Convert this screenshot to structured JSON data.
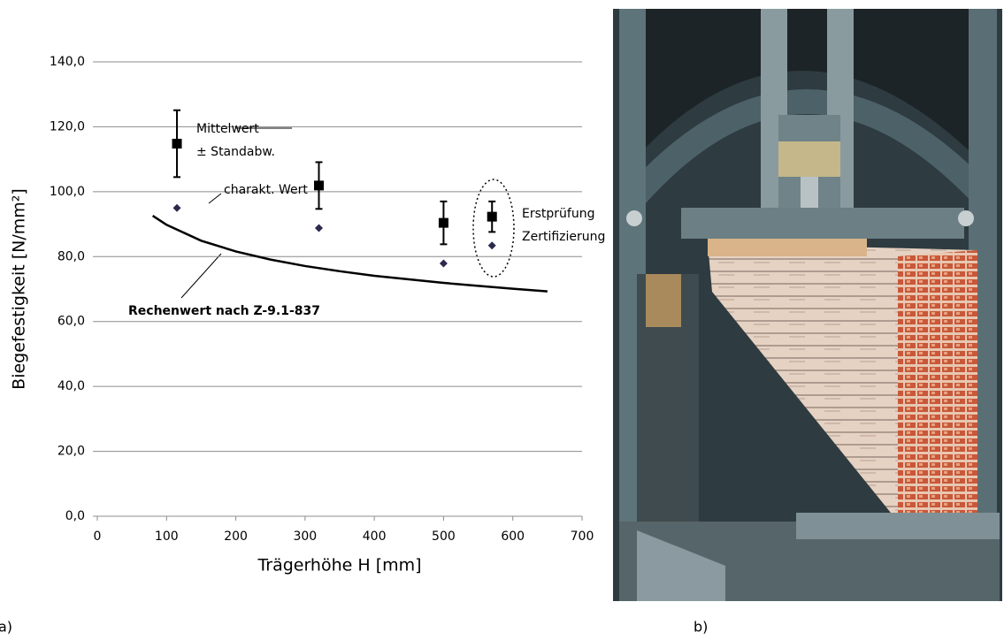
{
  "chart_data": {
    "type": "scatter",
    "xlabel": "Trägerhöhe H [mm]",
    "ylabel": "Biegefestigkeit [N/mm²]",
    "xlim": [
      0,
      700
    ],
    "xticks": [
      0,
      100,
      200,
      300,
      400,
      500,
      600,
      700
    ],
    "ylim": [
      0,
      140
    ],
    "yticks": [
      {
        "value": 0,
        "label": "0,0"
      },
      {
        "value": 20,
        "label": "20,0"
      },
      {
        "value": 40,
        "label": "40,0"
      },
      {
        "value": 60,
        "label": "60,0"
      },
      {
        "value": 80,
        "label": "80,0"
      },
      {
        "value": 100,
        "label": "100,0"
      },
      {
        "value": 120,
        "label": "120,0"
      },
      {
        "value": 140,
        "label": "140,0"
      }
    ],
    "grid": true,
    "series": [
      {
        "color": "#000000",
        "x": [
          115,
          320,
          500,
          570
        ],
        "values": [
          114.8,
          101.9,
          90.4,
          92.3
        ],
        "errors": [
          10.3,
          7.2,
          6.6,
          4.7
        ]
      },
      {
        "color": "#2b2a4c",
        "x": [
          115,
          320,
          500,
          570
        ],
        "values": [
          95.0,
          88.8,
          77.9,
          83.4
        ]
      }
    ],
    "curve": {
      "color": "#000000",
      "x": [
        80,
        100,
        150,
        200,
        250,
        300,
        350,
        400,
        450,
        500,
        550,
        600,
        650
      ],
      "values": [
        92.6,
        89.8,
        84.9,
        81.6,
        79.1,
        77.1,
        75.5,
        74.1,
        73.0,
        71.9,
        71.0,
        70.1,
        69.3
      ]
    },
    "annotations": [
      "Mittelwert",
      "± Standabw.",
      "charakt. Wert",
      "Erstprüfung",
      "Zertifizierung",
      "Rechenwert nach Z-9.1-837"
    ],
    "panel_labels": [
      "a)",
      "b)"
    ]
  }
}
